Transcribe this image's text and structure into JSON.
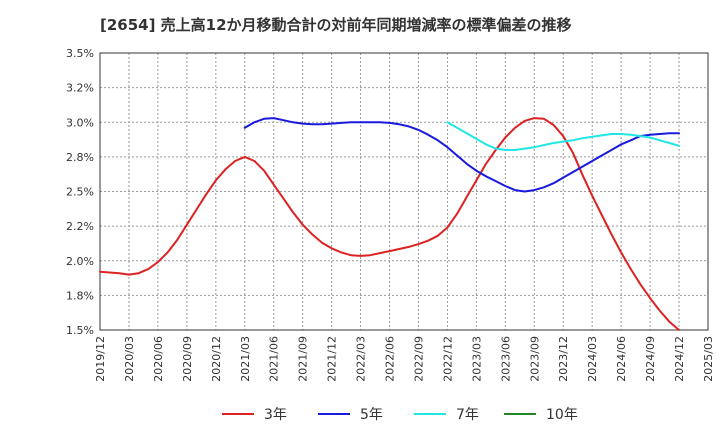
{
  "chart_data": {
    "type": "line",
    "title": "[2654]  売上高12か月移動合計の対前年同期増減率の標準偏差の推移",
    "xlabel": "",
    "ylabel": "",
    "ylim": [
      1.5,
      3.5
    ],
    "grid": true,
    "legend_position": "bottom",
    "y_ticks": [
      "3.5%",
      "3.2%",
      "3.0%",
      "2.8%",
      "2.5%",
      "2.2%",
      "2.0%",
      "1.8%",
      "1.5%"
    ],
    "y_tick_values": [
      3.5,
      3.25,
      3.0,
      2.75,
      2.5,
      2.25,
      2.0,
      1.75,
      1.5
    ],
    "x_ticks": [
      "2019/12",
      "2020/03",
      "2020/06",
      "2020/09",
      "2020/12",
      "2021/03",
      "2021/06",
      "2021/09",
      "2021/12",
      "2022/03",
      "2022/06",
      "2022/09",
      "2022/12",
      "2023/03",
      "2023/06",
      "2023/09",
      "2023/12",
      "2024/03",
      "2024/06",
      "2024/09",
      "2024/12",
      "2025/03"
    ],
    "series": [
      {
        "name": "3年",
        "color": "#dd2222",
        "x": [
          "2019/12",
          "2020/01",
          "2020/02",
          "2020/03",
          "2020/04",
          "2020/05",
          "2020/06",
          "2020/07",
          "2020/08",
          "2020/09",
          "2020/10",
          "2020/11",
          "2020/12",
          "2021/01",
          "2021/02",
          "2021/03",
          "2021/04",
          "2021/05",
          "2021/06",
          "2021/07",
          "2021/08",
          "2021/09",
          "2021/10",
          "2021/11",
          "2021/12",
          "2022/01",
          "2022/02",
          "2022/03",
          "2022/04",
          "2022/05",
          "2022/06",
          "2022/07",
          "2022/08",
          "2022/09",
          "2022/10",
          "2022/11",
          "2022/12",
          "2023/01",
          "2023/02",
          "2023/03",
          "2023/04",
          "2023/05",
          "2023/06",
          "2023/07",
          "2023/08",
          "2023/09",
          "2023/10",
          "2023/11",
          "2023/12",
          "2024/01",
          "2024/02",
          "2024/03",
          "2024/04",
          "2024/05",
          "2024/06",
          "2024/07",
          "2024/08",
          "2024/09",
          "2024/10",
          "2024/11",
          "2024/12"
        ],
        "values": [
          1.92,
          1.915,
          1.91,
          1.9,
          1.91,
          1.94,
          1.99,
          2.06,
          2.15,
          2.26,
          2.37,
          2.48,
          2.58,
          2.66,
          2.72,
          2.75,
          2.72,
          2.65,
          2.55,
          2.45,
          2.35,
          2.26,
          2.19,
          2.13,
          2.09,
          2.06,
          2.04,
          2.035,
          2.04,
          2.055,
          2.07,
          2.085,
          2.1,
          2.12,
          2.145,
          2.18,
          2.24,
          2.34,
          2.46,
          2.58,
          2.7,
          2.8,
          2.89,
          2.96,
          3.01,
          3.03,
          3.025,
          2.98,
          2.9,
          2.78,
          2.62,
          2.47,
          2.33,
          2.19,
          2.06,
          1.94,
          1.83,
          1.73,
          1.64,
          1.56,
          1.5
        ]
      },
      {
        "name": "5年",
        "color": "#1a1adf",
        "x": [
          "2021/03",
          "2021/04",
          "2021/05",
          "2021/06",
          "2021/07",
          "2021/08",
          "2021/09",
          "2021/10",
          "2021/11",
          "2021/12",
          "2022/01",
          "2022/02",
          "2022/03",
          "2022/04",
          "2022/05",
          "2022/06",
          "2022/07",
          "2022/08",
          "2022/09",
          "2022/10",
          "2022/11",
          "2022/12",
          "2023/01",
          "2023/02",
          "2023/03",
          "2023/04",
          "2023/05",
          "2023/06",
          "2023/07",
          "2023/08",
          "2023/09",
          "2023/10",
          "2023/11",
          "2023/12",
          "2024/01",
          "2024/02",
          "2024/03",
          "2024/04",
          "2024/05",
          "2024/06",
          "2024/07",
          "2024/08",
          "2024/09",
          "2024/10",
          "2024/11",
          "2024/12"
        ],
        "values": [
          2.96,
          3.0,
          3.025,
          3.03,
          3.015,
          3.0,
          2.99,
          2.985,
          2.985,
          2.99,
          2.995,
          3.0,
          3.0,
          3.0,
          3.0,
          2.995,
          2.985,
          2.97,
          2.945,
          2.91,
          2.87,
          2.82,
          2.76,
          2.7,
          2.65,
          2.61,
          2.575,
          2.54,
          2.51,
          2.5,
          2.51,
          2.53,
          2.56,
          2.6,
          2.64,
          2.68,
          2.72,
          2.76,
          2.8,
          2.84,
          2.87,
          2.9,
          2.91,
          2.915,
          2.92,
          2.92
        ]
      },
      {
        "name": "7年",
        "color": "#22e6e6",
        "x": [
          "2022/12",
          "2023/01",
          "2023/02",
          "2023/03",
          "2023/04",
          "2023/05",
          "2023/06",
          "2023/07",
          "2023/08",
          "2023/09",
          "2023/10",
          "2023/11",
          "2023/12",
          "2024/01",
          "2024/02",
          "2024/03",
          "2024/04",
          "2024/05",
          "2024/06",
          "2024/07",
          "2024/08",
          "2024/09",
          "2024/10",
          "2024/11",
          "2024/12"
        ],
        "values": [
          3.0,
          2.96,
          2.92,
          2.88,
          2.84,
          2.81,
          2.8,
          2.8,
          2.81,
          2.82,
          2.835,
          2.85,
          2.86,
          2.87,
          2.885,
          2.895,
          2.905,
          2.915,
          2.915,
          2.91,
          2.9,
          2.89,
          2.87,
          2.85,
          2.83
        ]
      },
      {
        "name": "10年",
        "color": "#228822",
        "x": [],
        "values": []
      }
    ]
  }
}
